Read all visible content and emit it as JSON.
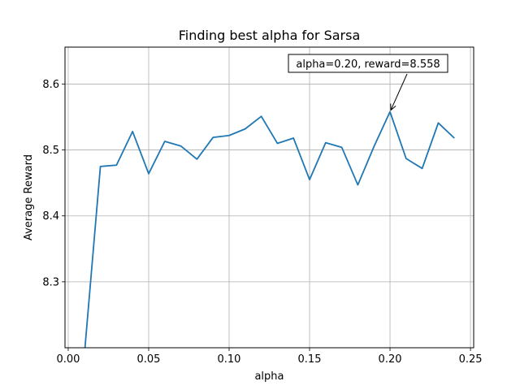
{
  "chart_data": {
    "type": "line",
    "title": "Finding best alpha for Sarsa",
    "xlabel": "alpha",
    "ylabel": "Average Reward",
    "xlim": [
      -0.002,
      0.252
    ],
    "ylim": [
      8.2,
      8.656
    ],
    "grid": true,
    "x_ticks": [
      0.0,
      0.05,
      0.1,
      0.15,
      0.2,
      0.25
    ],
    "x_tick_labels": [
      "0.00",
      "0.05",
      "0.10",
      "0.15",
      "0.20",
      "0.25"
    ],
    "y_ticks": [
      8.3,
      8.4,
      8.5,
      8.6
    ],
    "y_tick_labels": [
      "8.3",
      "8.4",
      "8.5",
      "8.6"
    ],
    "line_color": "#1f77b4",
    "series": [
      {
        "x": [
          0.01,
          0.02,
          0.03,
          0.04,
          0.05,
          0.06,
          0.07,
          0.08,
          0.09,
          0.1,
          0.11,
          0.12,
          0.13,
          0.14,
          0.15,
          0.16,
          0.17,
          0.18,
          0.19,
          0.2,
          0.21,
          0.22,
          0.23,
          0.24
        ],
        "values": [
          8.188,
          8.475,
          8.477,
          8.528,
          8.464,
          8.513,
          8.506,
          8.486,
          8.519,
          8.522,
          8.532,
          8.551,
          8.51,
          8.518,
          8.455,
          8.511,
          8.504,
          8.447,
          8.505,
          8.558,
          8.487,
          8.472,
          8.541,
          8.518
        ]
      }
    ],
    "annotation": {
      "text": "alpha=0.20, reward=8.558",
      "x": 0.2,
      "y": 8.558
    }
  }
}
